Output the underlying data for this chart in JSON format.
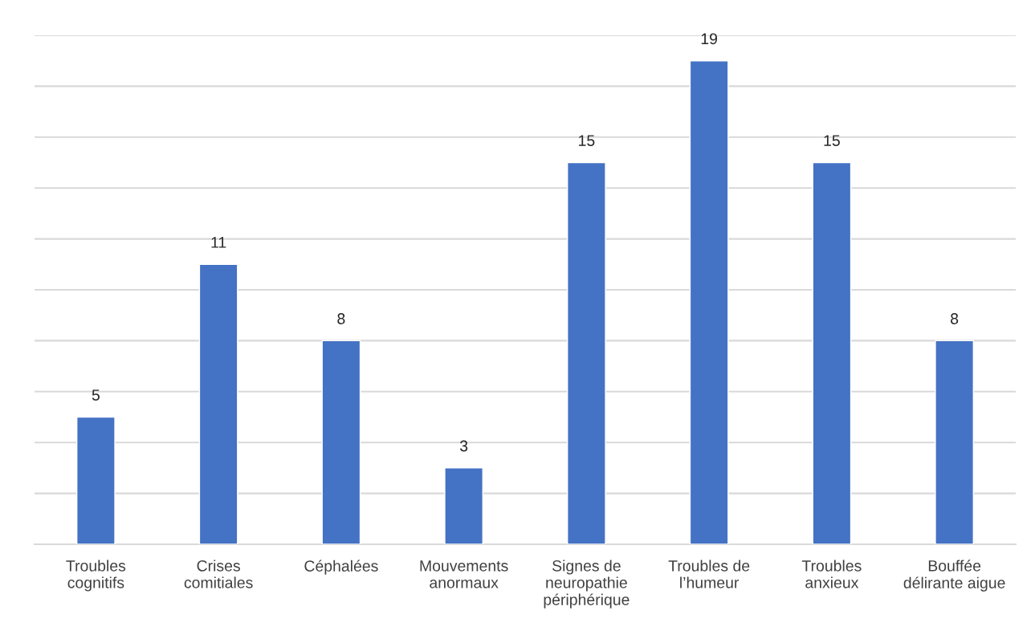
{
  "chart_data": {
    "type": "bar",
    "categories": [
      "Troubles\ncognitifs",
      "Crises\ncomitiales",
      "Céphalées",
      "Mouvements\nanormaux",
      "Signes de\nneuropathie\npériphérique",
      "Troubles de\nl’humeur",
      "Troubles\nanxieux",
      "Bouffée\ndélirante aigue"
    ],
    "values": [
      5,
      11,
      8,
      3,
      15,
      19,
      15,
      8
    ],
    "color": "#4472c4",
    "ylim": [
      0,
      20
    ],
    "yticks": [
      {
        "value": 0,
        "label": null
      },
      {
        "value": 2,
        "label": null
      },
      {
        "value": 4,
        "label": null
      },
      {
        "value": 6,
        "label": null
      },
      {
        "value": 8,
        "label": null
      },
      {
        "value": 10,
        "label": null
      },
      {
        "value": 12,
        "label": null
      },
      {
        "value": 14,
        "label": null
      },
      {
        "value": 16,
        "label": null
      },
      {
        "value": 18,
        "label": null
      },
      {
        "value": 20,
        "label": null
      }
    ],
    "grid": "y",
    "tick_labels": "x",
    "data_labels": true
  }
}
